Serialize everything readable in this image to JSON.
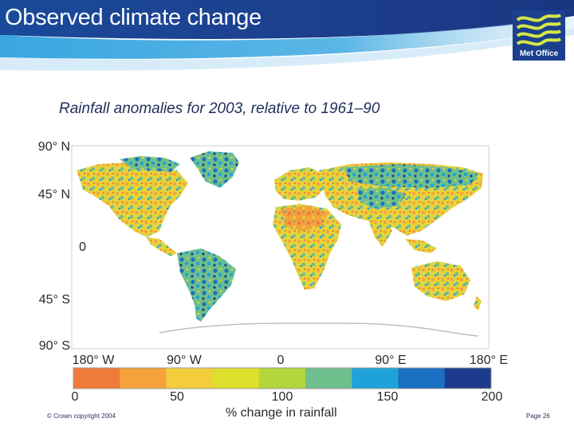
{
  "slide": {
    "title": "Observed climate change",
    "subtitle": "Rainfall anomalies for 2003, relative to 1961–90",
    "copyright": "© Crown copyright 2004",
    "page": "Page 26"
  },
  "logo": {
    "text": "Met Office",
    "icon": "met-office-waves-icon"
  },
  "map": {
    "latitude_labels": [
      "90° N",
      "45° N",
      "0",
      "45° S",
      "90° S"
    ],
    "longitude_labels": [
      "180° W",
      "90° W",
      "0",
      "90° E",
      "180° E"
    ]
  },
  "colorscale": {
    "title": "% change in rainfall",
    "tick_labels": [
      "0",
      "50",
      "100",
      "150",
      "200"
    ],
    "colors": [
      "#f07a38",
      "#f4a33c",
      "#f3cd3c",
      "#dddf2c",
      "#b2d63c",
      "#6ebf8c",
      "#1fa2d9",
      "#1b6fc2",
      "#1d3b8c"
    ]
  },
  "colors": {
    "header_blue": "#1c3f8e",
    "header_light": "#2f9ad6",
    "text_navy": "#1f2e5a"
  }
}
